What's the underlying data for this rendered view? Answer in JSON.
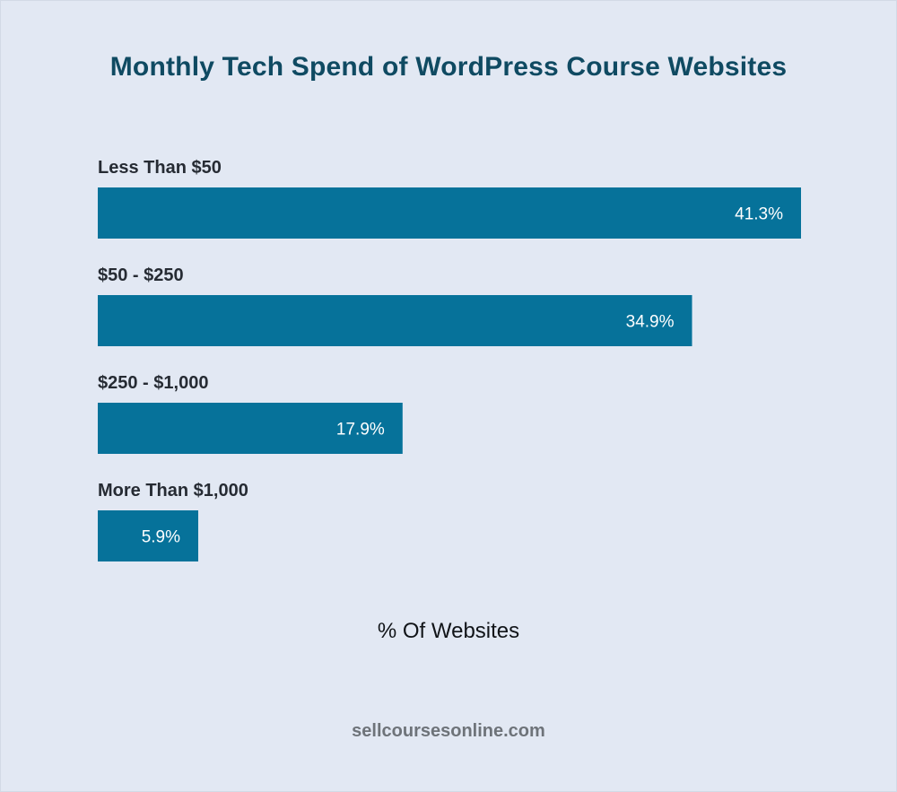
{
  "chart_data": {
    "type": "bar",
    "orientation": "horizontal",
    "title": "Monthly Tech Spend of WordPress Course Websites",
    "xlabel": "% Of Websites",
    "categories": [
      "Less Than $50",
      "$50 - $250",
      "$250 - $1,000",
      "More Than $1,000"
    ],
    "values": [
      41.3,
      34.9,
      17.9,
      5.9
    ],
    "value_labels": [
      "41.3%",
      "34.9%",
      "17.9%",
      "5.9%"
    ],
    "xlim": [
      0,
      41.3
    ],
    "bar_color": "#06729a",
    "grid": false,
    "legend": "none"
  },
  "footer": {
    "source": "sellcoursesonline.com"
  }
}
